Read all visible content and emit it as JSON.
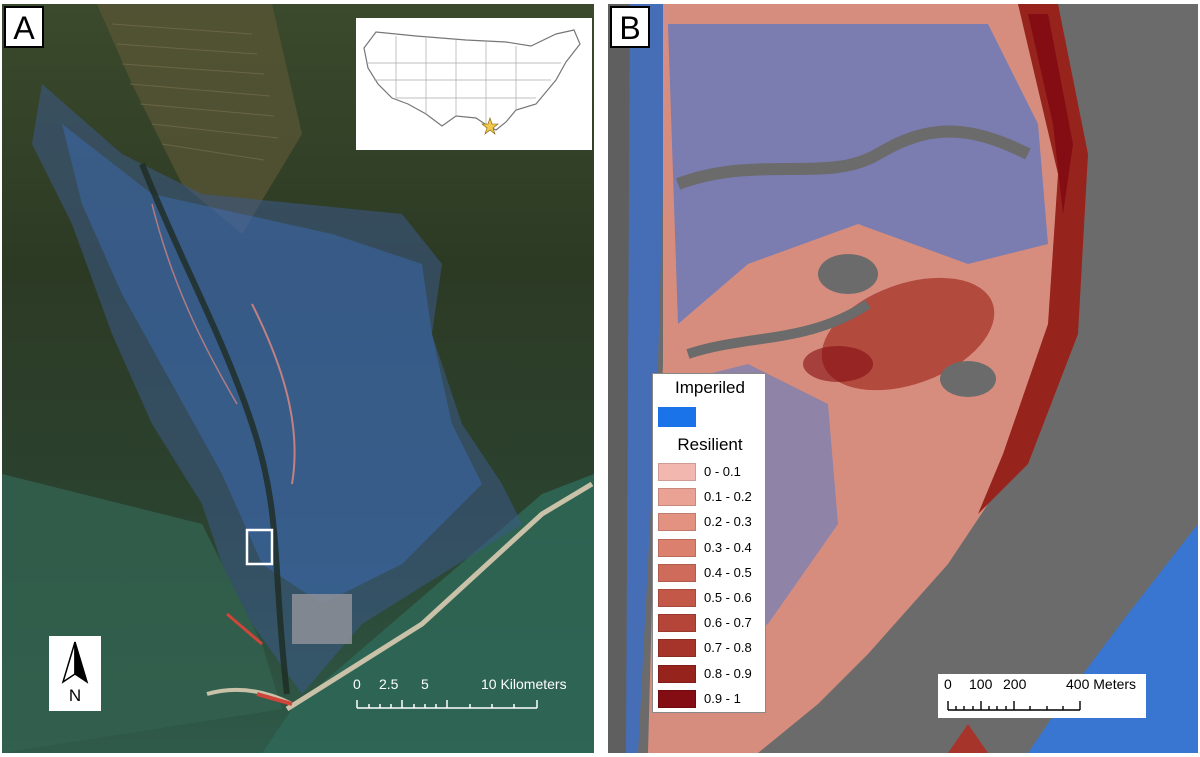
{
  "panels": {
    "a": {
      "label": "A"
    },
    "b": {
      "label": "B"
    }
  },
  "north_arrow": {
    "label": "N"
  },
  "scale_a": {
    "labels": [
      "0",
      "2.5",
      "5",
      "10 Kilometers"
    ]
  },
  "scale_b": {
    "labels": [
      "0",
      "100",
      "200",
      "400 Meters"
    ]
  },
  "legend": {
    "imperiled_title": "Imperiled",
    "imperiled_color": "#1a73e8",
    "resilient_title": "Resilient",
    "classes": [
      {
        "label": "0 - 0.1",
        "color": "#f2b8b0"
      },
      {
        "label": "0.1 - 0.2",
        "color": "#eaa294"
      },
      {
        "label": "0.2 - 0.3",
        "color": "#e39181"
      },
      {
        "label": "0.3 - 0.4",
        "color": "#db7f6e"
      },
      {
        "label": "0.4 - 0.5",
        "color": "#cf6b5a"
      },
      {
        "label": "0.5 - 0.6",
        "color": "#c35849"
      },
      {
        "label": "0.6 - 0.7",
        "color": "#b54538"
      },
      {
        "label": "0.7 - 0.8",
        "color": "#a6342a"
      },
      {
        "label": "0.8 - 0.9",
        "color": "#97231d"
      },
      {
        "label": "0.9 - 1",
        "color": "#830d12"
      }
    ]
  },
  "colors": {
    "water_gray": "#6b6b6b",
    "imperiled_blue": "#1f6fe0",
    "marsh_dark": "#2a3a24",
    "gulf_water": "#2f5a48"
  }
}
